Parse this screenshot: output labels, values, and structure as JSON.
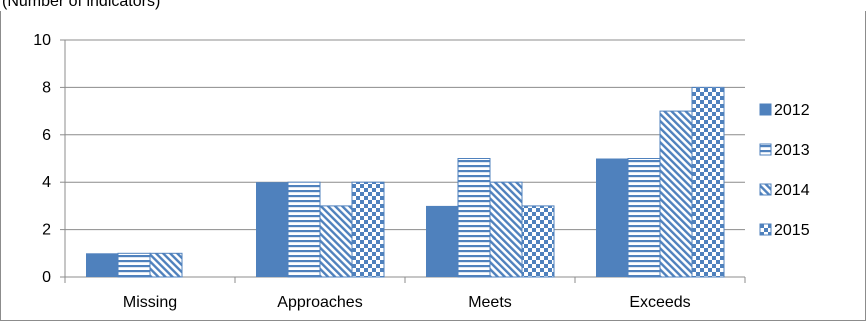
{
  "chart_data": {
    "type": "bar",
    "subtitle": "(Number of indicators)",
    "categories": [
      "Missing",
      "Approaches",
      "Meets",
      "Exceeds"
    ],
    "series": [
      {
        "name": "2012",
        "values": [
          1,
          4,
          3,
          5
        ],
        "fill": "solid",
        "color": "#4F81BD"
      },
      {
        "name": "2013",
        "values": [
          1,
          4,
          5,
          5
        ],
        "fill": "horizontal-stripes",
        "color": "#4F81BD"
      },
      {
        "name": "2014",
        "values": [
          1,
          3,
          4,
          7
        ],
        "fill": "diagonal-stripes",
        "color": "#4F81BD"
      },
      {
        "name": "2015",
        "values": [
          null,
          4,
          3,
          8
        ],
        "fill": "checker",
        "color": "#4F81BD"
      }
    ],
    "y_ticks": [
      "0",
      "2",
      "4",
      "6",
      "8",
      "10"
    ],
    "ylim": [
      0,
      10
    ],
    "grid": true,
    "legend": "right"
  }
}
